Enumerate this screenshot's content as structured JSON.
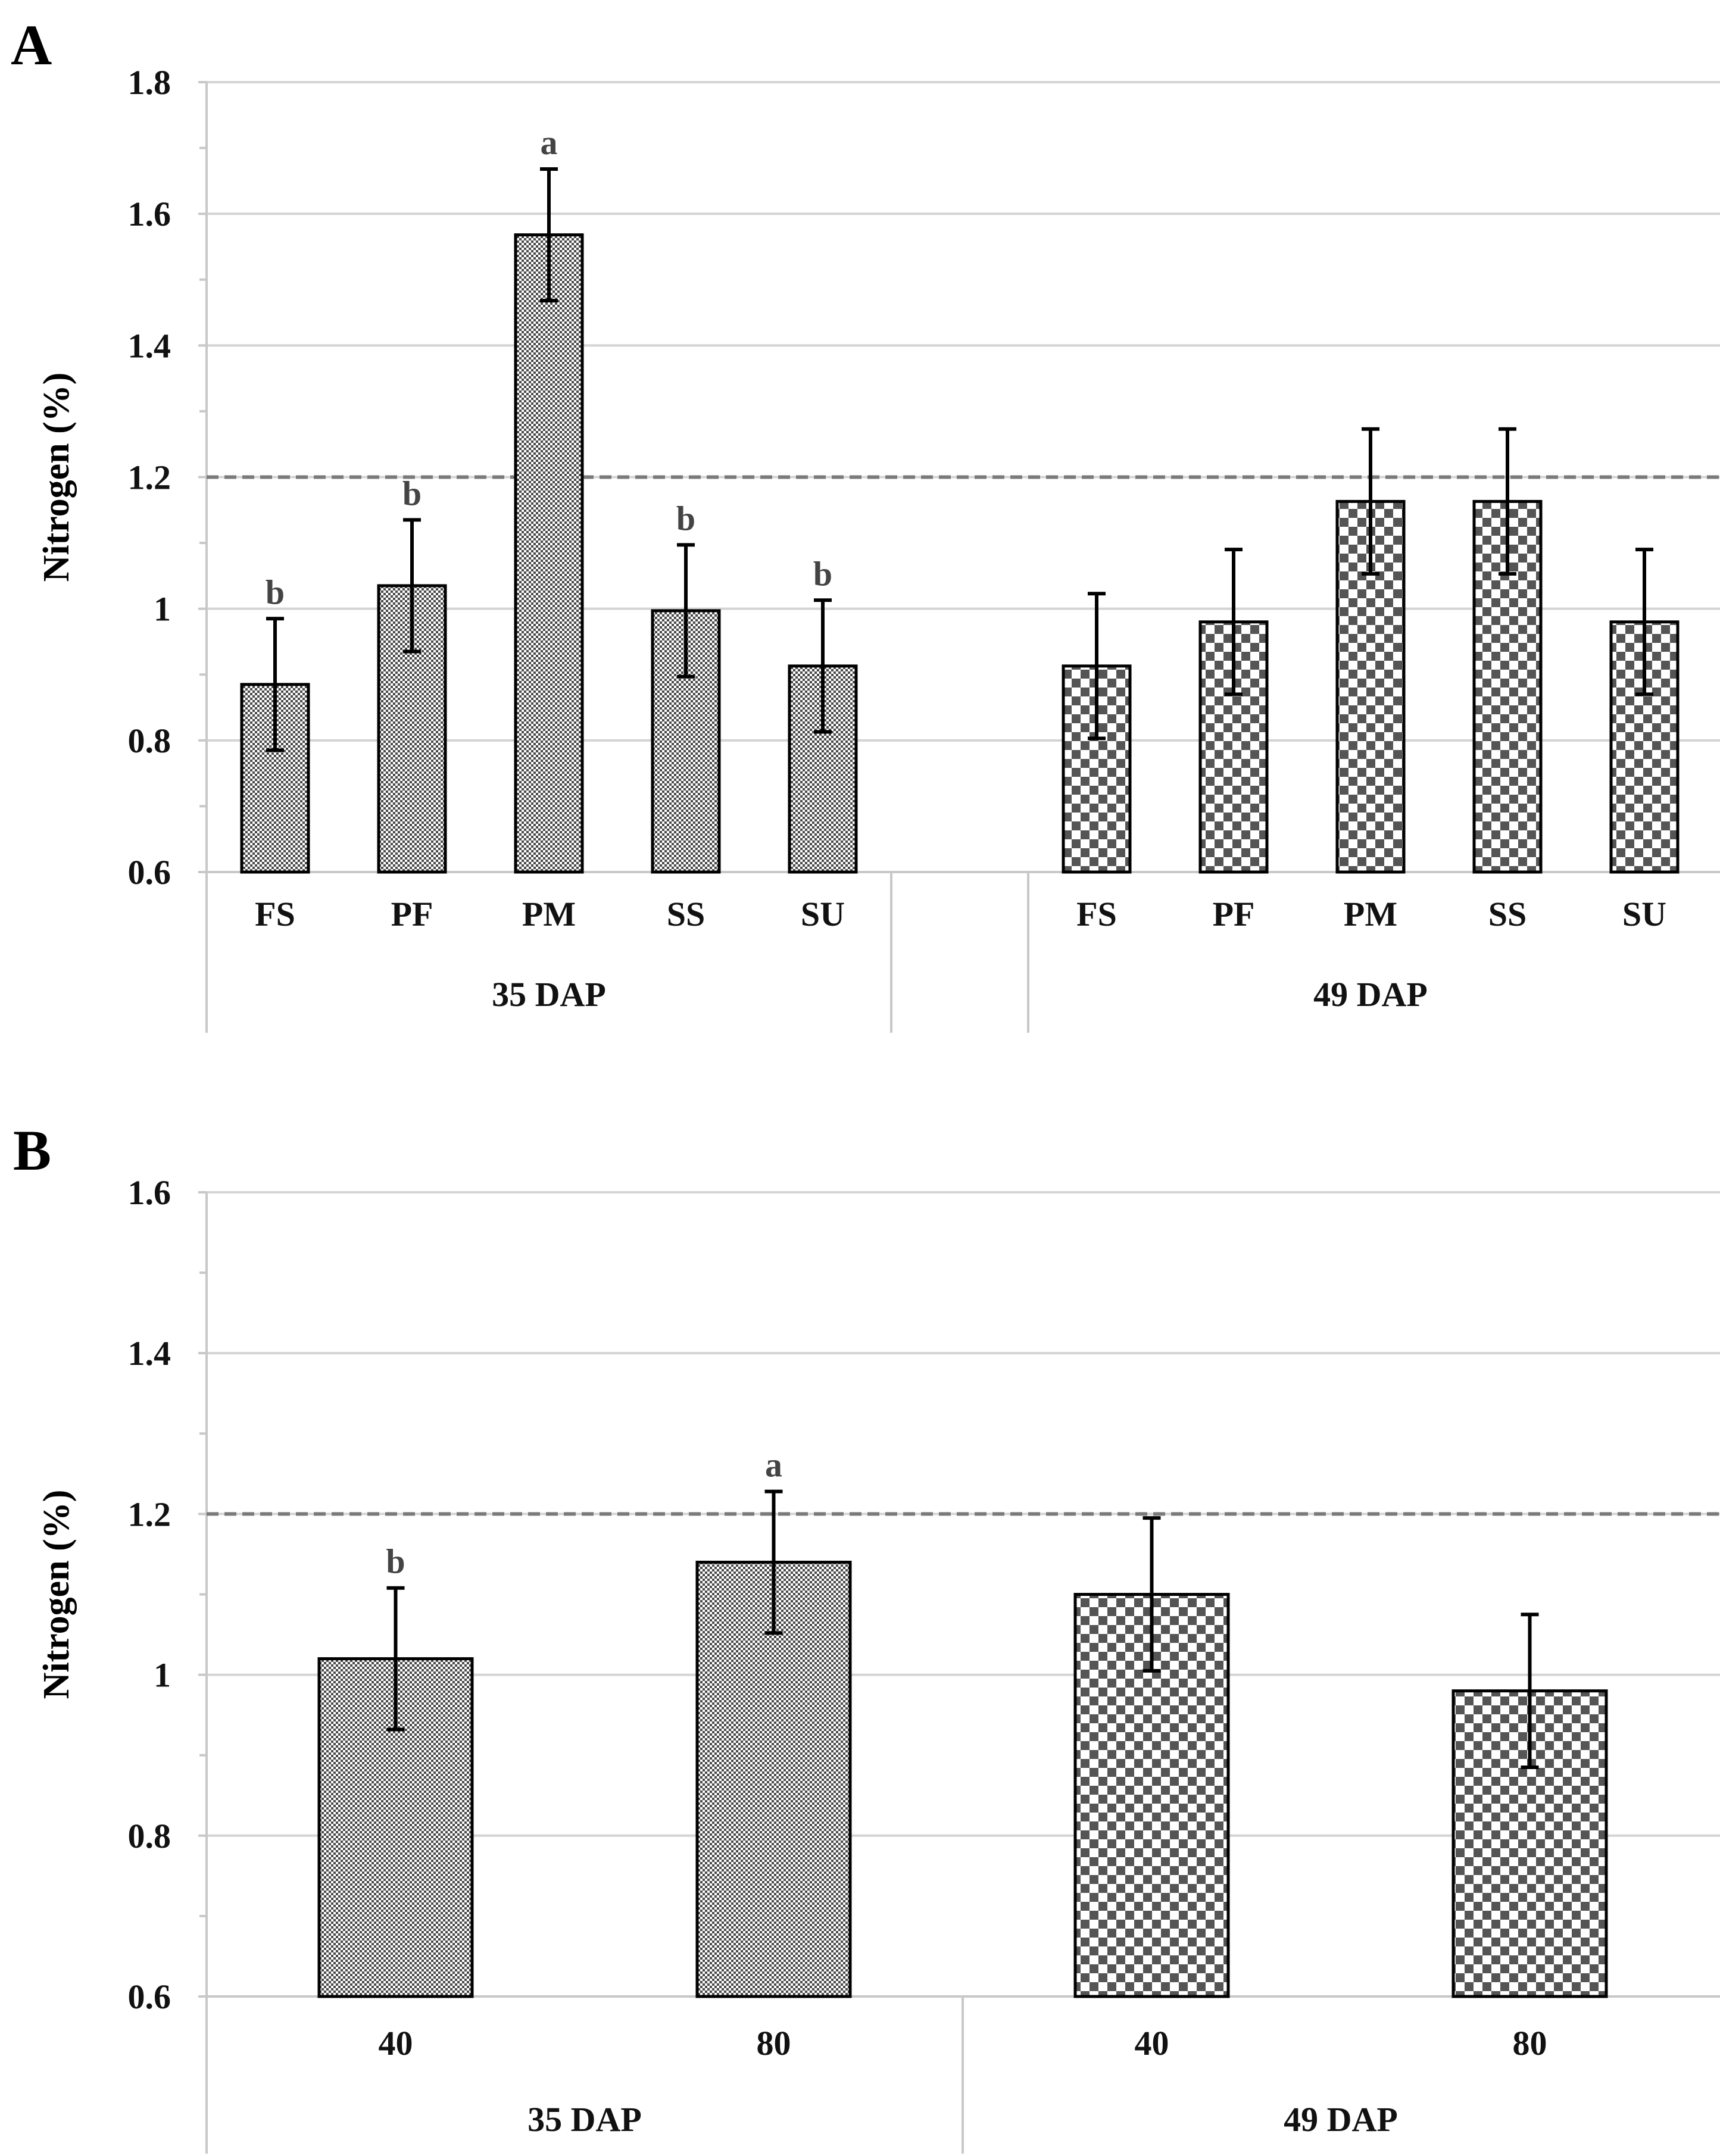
{
  "chart_data": [
    {
      "panel": "A",
      "type": "bar",
      "ylabel": "Nitrogen (%)",
      "ylim": [
        0.6,
        1.8
      ],
      "yticks": [
        "0.6",
        "0.8",
        "1",
        "1.2",
        "1.4",
        "1.6",
        "1.8"
      ],
      "reference_line": 1.2,
      "groups": [
        {
          "label": "35 DAP",
          "pattern": "fine",
          "bars": [
            {
              "label": "FS",
              "value": 0.885,
              "error": 0.1,
              "letter": "b"
            },
            {
              "label": "PF",
              "value": 1.035,
              "error": 0.1,
              "letter": "b"
            },
            {
              "label": "PM",
              "value": 1.568,
              "error": 0.1,
              "letter": "a"
            },
            {
              "label": "SS",
              "value": 0.997,
              "error": 0.1,
              "letter": "b"
            },
            {
              "label": "SU",
              "value": 0.913,
              "error": 0.1,
              "letter": "b"
            }
          ]
        },
        {
          "label": "49 DAP",
          "pattern": "checker",
          "bars": [
            {
              "label": "FS",
              "value": 0.913,
              "error": 0.11,
              "letter": ""
            },
            {
              "label": "PF",
              "value": 0.98,
              "error": 0.11,
              "letter": ""
            },
            {
              "label": "PM",
              "value": 1.163,
              "error": 0.11,
              "letter": ""
            },
            {
              "label": "SS",
              "value": 1.163,
              "error": 0.11,
              "letter": ""
            },
            {
              "label": "SU",
              "value": 0.98,
              "error": 0.11,
              "letter": ""
            }
          ]
        }
      ]
    },
    {
      "panel": "B",
      "type": "bar",
      "ylabel": "Nitrogen (%)",
      "ylim": [
        0.6,
        1.6
      ],
      "yticks": [
        "0.6",
        "0.8",
        "1",
        "1.2",
        "1.4",
        "1.6"
      ],
      "reference_line": 1.2,
      "groups": [
        {
          "label": "35 DAP",
          "pattern": "fine",
          "bars": [
            {
              "label": "40",
              "value": 1.02,
              "error": 0.088,
              "letter": "b"
            },
            {
              "label": "80",
              "value": 1.14,
              "error": 0.088,
              "letter": "a"
            }
          ]
        },
        {
          "label": "49 DAP",
          "pattern": "checker",
          "bars": [
            {
              "label": "40",
              "value": 1.1,
              "error": 0.095,
              "letter": ""
            },
            {
              "label": "80",
              "value": 0.98,
              "error": 0.095,
              "letter": ""
            }
          ]
        }
      ]
    }
  ]
}
